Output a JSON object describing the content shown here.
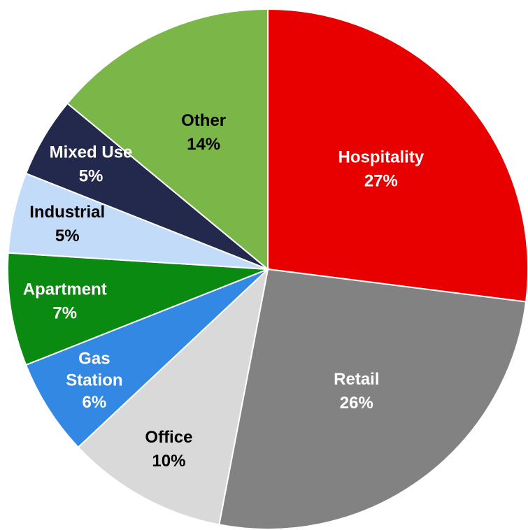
{
  "chart_data": {
    "type": "pie",
    "categories": [
      "Hospitality",
      "Retail",
      "Office",
      "Gas Station",
      "Apartment",
      "Industrial",
      "Mixed Use",
      "Other"
    ],
    "values": [
      27,
      26,
      10,
      6,
      7,
      5,
      5,
      14
    ],
    "value_labels": [
      "27%",
      "26%",
      "10%",
      "6%",
      "7%",
      "5%",
      "5%",
      "14%"
    ],
    "colors": [
      "#e80000",
      "#828282",
      "#d9d9d9",
      "#3288e2",
      "#0b8a12",
      "#c2dbf8",
      "#23284d",
      "#7ab648"
    ]
  }
}
